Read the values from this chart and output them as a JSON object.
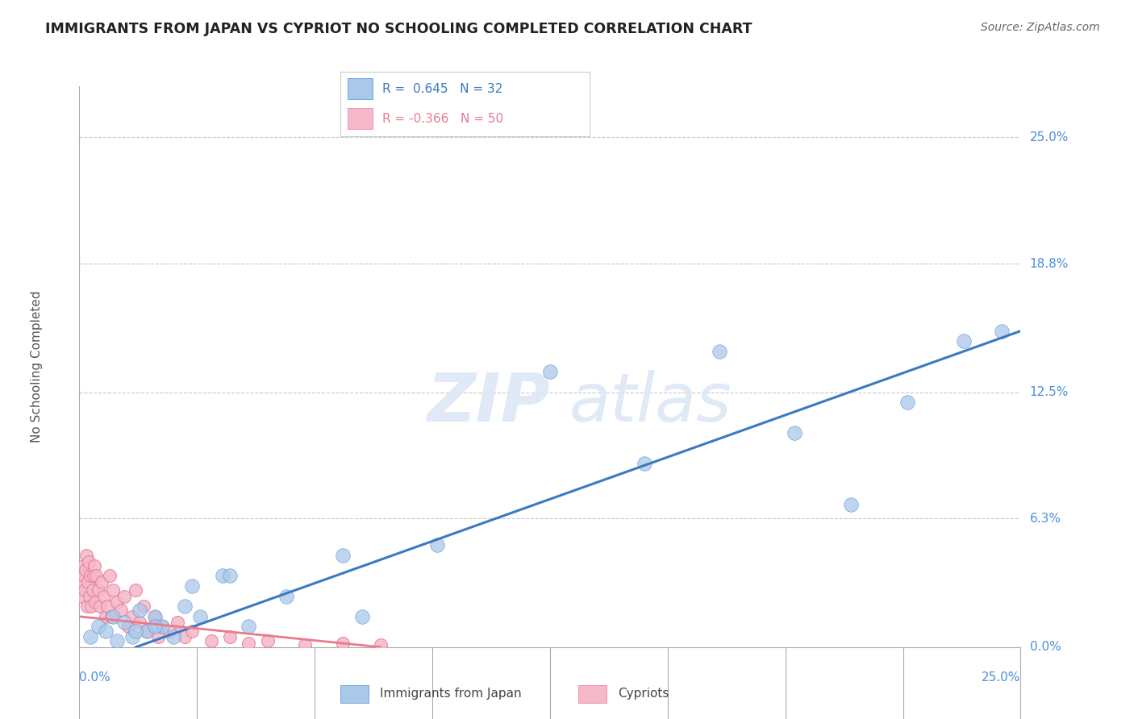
{
  "title": "IMMIGRANTS FROM JAPAN VS CYPRIOT NO SCHOOLING COMPLETED CORRELATION CHART",
  "source": "Source: ZipAtlas.com",
  "ylabel": "No Schooling Completed",
  "ytick_labels": [
    "0.0%",
    "6.3%",
    "12.5%",
    "18.8%",
    "25.0%"
  ],
  "ytick_values": [
    0.0,
    6.3,
    12.5,
    18.8,
    25.0
  ],
  "xrange": [
    0.0,
    25.0
  ],
  "yrange": [
    0.0,
    27.5
  ],
  "r_japan": 0.645,
  "n_japan": 32,
  "r_cypriot": -0.366,
  "n_cypriot": 50,
  "legend_japan": "Immigrants from Japan",
  "legend_cypriot": "Cypriots",
  "color_japan": "#aac8e8",
  "color_cypriot": "#f5b8cb",
  "color_japan_line": "#3a7abf",
  "color_cypriot_line": "#e87a90",
  "color_japan_dark": "#4a90d9",
  "color_cypriot_dark": "#e87a90",
  "background_color": "#ffffff",
  "grid_color": "#c8c8c8",
  "japan_scatter_x": [
    0.3,
    0.5,
    0.7,
    0.9,
    1.0,
    1.2,
    1.4,
    1.6,
    1.8,
    2.0,
    2.2,
    2.5,
    2.8,
    3.2,
    3.8,
    4.5,
    5.5,
    7.0,
    7.5,
    9.5,
    12.5,
    15.0,
    17.0,
    19.0,
    20.5,
    22.0,
    23.5,
    24.5,
    1.5,
    2.0,
    3.0,
    4.0
  ],
  "japan_scatter_y": [
    0.5,
    1.0,
    0.8,
    1.5,
    0.3,
    1.2,
    0.5,
    1.8,
    0.8,
    1.5,
    1.0,
    0.5,
    2.0,
    1.5,
    3.5,
    1.0,
    2.5,
    4.5,
    1.5,
    5.0,
    13.5,
    9.0,
    14.5,
    10.5,
    7.0,
    12.0,
    15.0,
    15.5,
    0.8,
    1.0,
    3.0,
    3.5
  ],
  "cypriot_scatter_x": [
    0.05,
    0.08,
    0.1,
    0.12,
    0.14,
    0.16,
    0.18,
    0.2,
    0.22,
    0.25,
    0.28,
    0.3,
    0.32,
    0.35,
    0.38,
    0.4,
    0.42,
    0.45,
    0.5,
    0.55,
    0.6,
    0.65,
    0.7,
    0.75,
    0.8,
    0.85,
    0.9,
    1.0,
    1.1,
    1.2,
    1.3,
    1.4,
    1.5,
    1.6,
    1.7,
    1.8,
    2.0,
    2.1,
    2.2,
    2.4,
    2.6,
    2.8,
    3.0,
    3.5,
    4.0,
    4.5,
    5.0,
    6.0,
    7.0,
    8.0
  ],
  "cypriot_scatter_y": [
    3.2,
    2.5,
    4.0,
    3.5,
    2.8,
    3.8,
    4.5,
    2.0,
    3.2,
    4.2,
    2.5,
    3.5,
    2.0,
    2.8,
    3.5,
    4.0,
    2.2,
    3.5,
    2.8,
    2.0,
    3.2,
    2.5,
    1.5,
    2.0,
    3.5,
    1.5,
    2.8,
    2.2,
    1.8,
    2.5,
    1.0,
    1.5,
    2.8,
    1.2,
    2.0,
    0.8,
    1.5,
    0.5,
    1.0,
    0.8,
    1.2,
    0.5,
    0.8,
    0.3,
    0.5,
    0.2,
    0.3,
    0.1,
    0.2,
    0.1
  ],
  "japan_line_x0": 1.5,
  "japan_line_y0": 0.0,
  "japan_line_x1": 25.0,
  "japan_line_y1": 15.5,
  "cypriot_line_x0": 0.0,
  "cypriot_line_y0": 1.5,
  "cypriot_line_x1": 8.0,
  "cypriot_line_y1": 0.0
}
